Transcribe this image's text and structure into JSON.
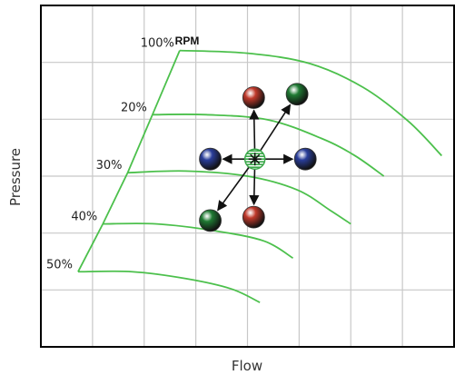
{
  "chart_data": {
    "type": "line",
    "title": "",
    "xlabel": "Flow",
    "ylabel": "Pressure",
    "xlim": [
      0,
      10
    ],
    "ylim": [
      0,
      10
    ],
    "grid": true,
    "rpm_header": "RPM",
    "series": [
      {
        "label": "100%",
        "points": [
          [
            3.36,
            8.68
          ],
          [
            5,
            8.6
          ],
          [
            6.5,
            8.3
          ],
          [
            7.8,
            7.6
          ],
          [
            8.9,
            6.6
          ],
          [
            9.7,
            5.6
          ]
        ]
      },
      {
        "label": "20%",
        "points": [
          [
            2.7,
            6.8
          ],
          [
            4,
            6.8
          ],
          [
            5.5,
            6.65
          ],
          [
            6.8,
            6.1
          ],
          [
            7.6,
            5.6
          ],
          [
            8.3,
            5.0
          ]
        ]
      },
      {
        "label": "30%",
        "points": [
          [
            2.1,
            5.1
          ],
          [
            3.5,
            5.15
          ],
          [
            5,
            5.0
          ],
          [
            6.2,
            4.6
          ],
          [
            7.0,
            4.0
          ],
          [
            7.5,
            3.6
          ]
        ]
      },
      {
        "label": "40%",
        "points": [
          [
            1.5,
            3.6
          ],
          [
            2.8,
            3.6
          ],
          [
            4.2,
            3.4
          ],
          [
            5.4,
            3.1
          ],
          [
            6.1,
            2.6
          ]
        ]
      },
      {
        "label": "50%",
        "points": [
          [
            0.9,
            2.2
          ],
          [
            2.2,
            2.2
          ],
          [
            3.5,
            2.0
          ],
          [
            4.6,
            1.7
          ],
          [
            5.3,
            1.3
          ]
        ]
      }
    ],
    "envelope": [
      [
        0.9,
        2.2
      ],
      [
        1.5,
        3.6
      ],
      [
        2.1,
        5.1
      ],
      [
        2.7,
        6.8
      ],
      [
        3.36,
        8.68
      ]
    ],
    "operating_points": [
      {
        "name": "center",
        "x": 5.18,
        "y": 5.5,
        "color": "#3ba84a"
      },
      {
        "name": "up-red",
        "x": 5.15,
        "y": 7.3,
        "color": "#c0392b"
      },
      {
        "name": "up-right-green",
        "x": 6.2,
        "y": 7.4,
        "color": "#1f7a33"
      },
      {
        "name": "left-blue",
        "x": 4.1,
        "y": 5.5,
        "color": "#2a3e9a"
      },
      {
        "name": "right-blue",
        "x": 6.4,
        "y": 5.5,
        "color": "#2a3e9a"
      },
      {
        "name": "down-left-green",
        "x": 4.1,
        "y": 3.7,
        "color": "#1f7a33"
      },
      {
        "name": "down-red",
        "x": 5.15,
        "y": 3.8,
        "color": "#c0392b"
      }
    ],
    "colors": {
      "curve": "#4cc04c",
      "grid": "#c8c8c8",
      "frame": "#000000",
      "arrow": "#111111"
    }
  }
}
